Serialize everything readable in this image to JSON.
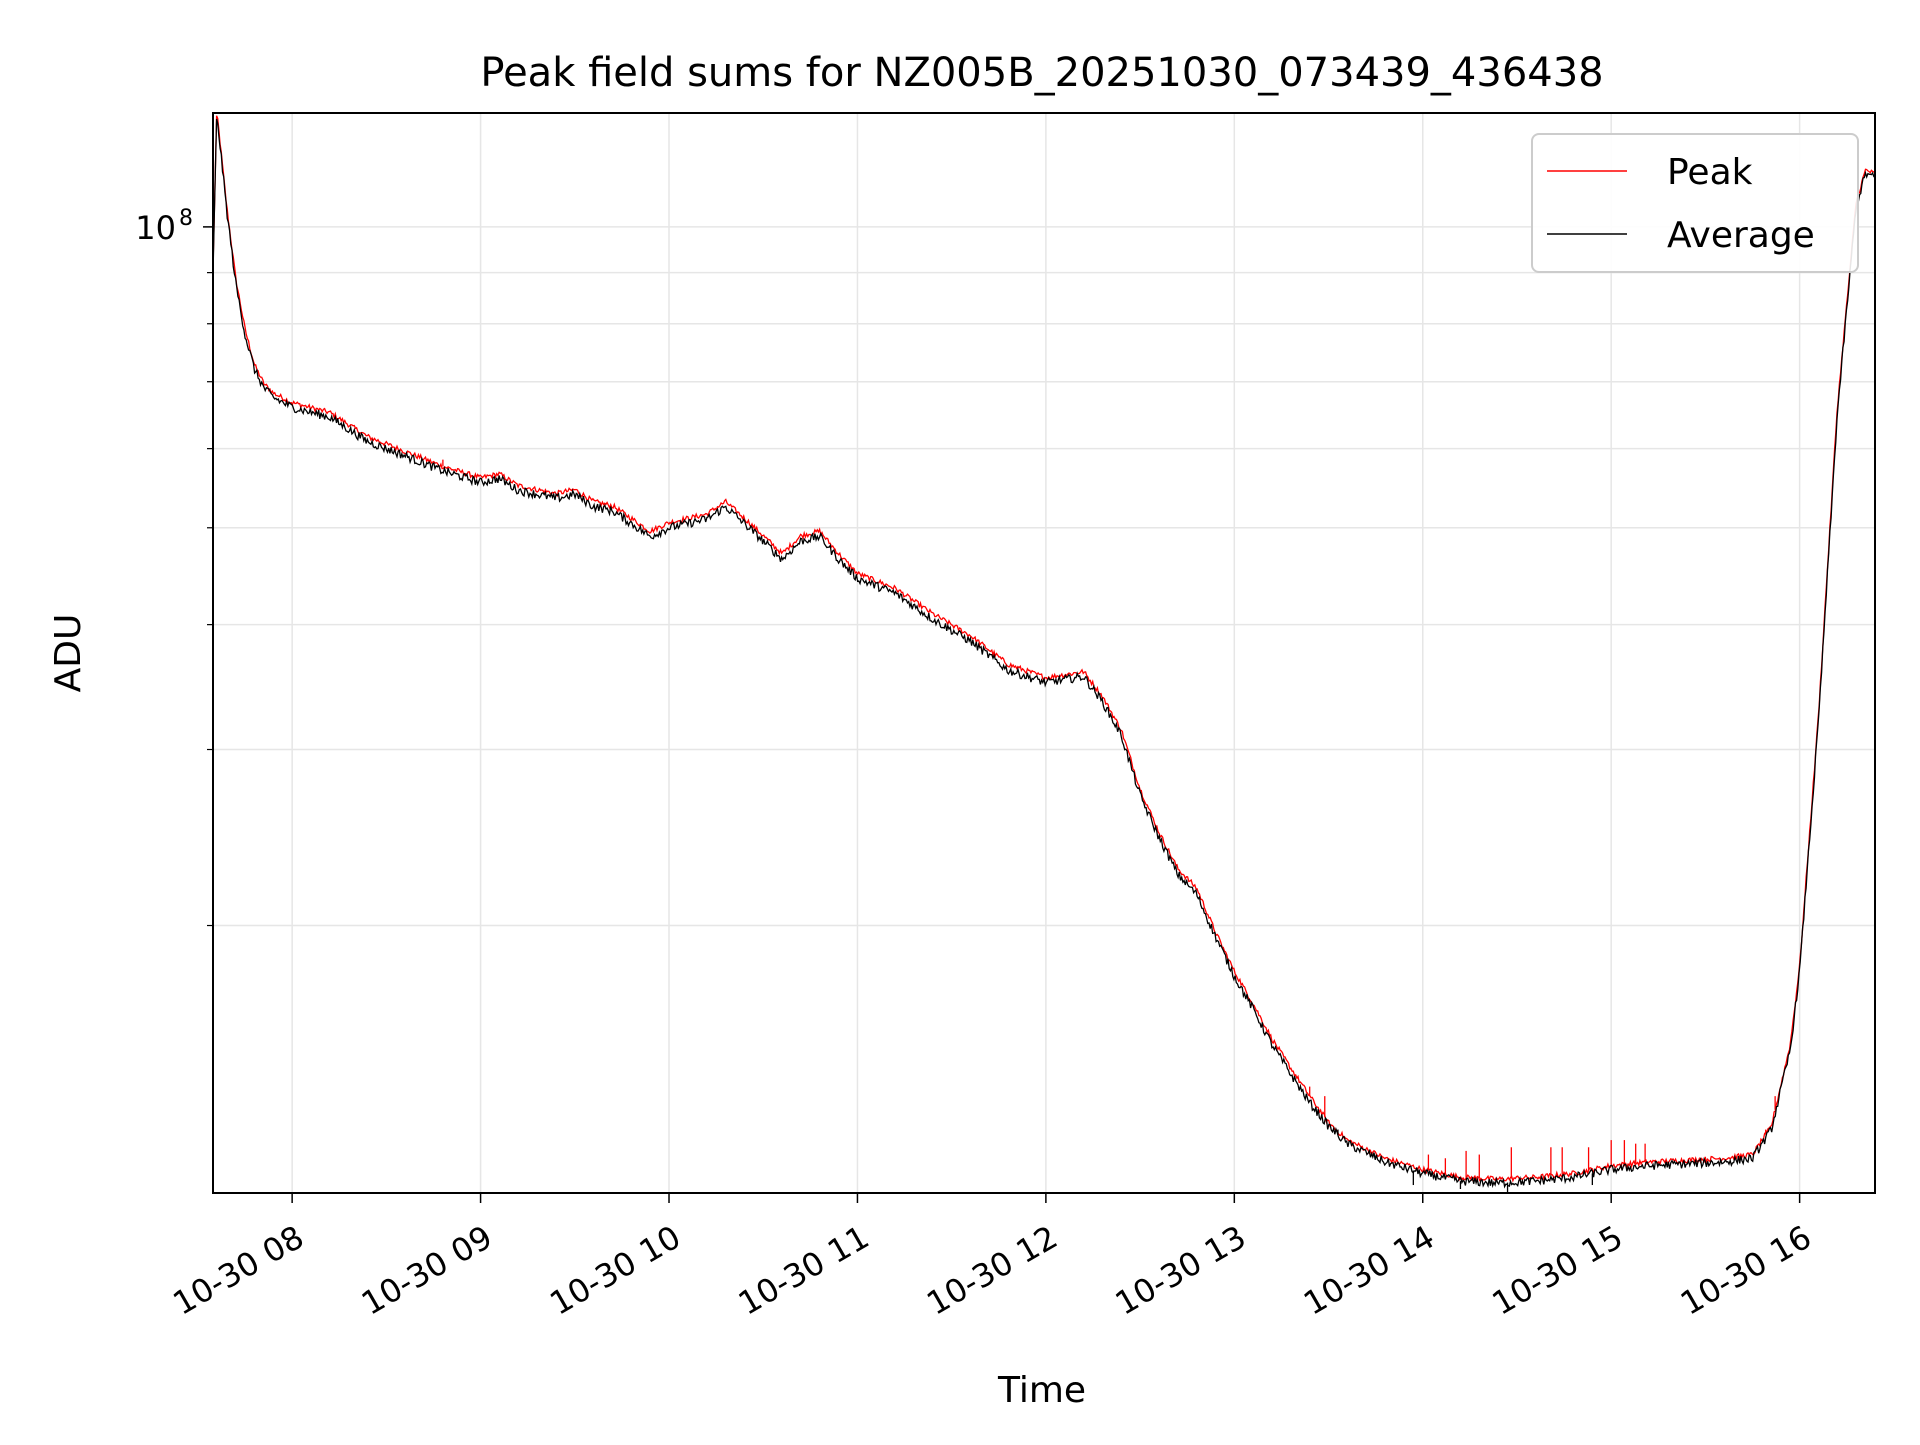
{
  "chart_data": {
    "type": "line",
    "title": "Peak field sums for NZ005B_20251030_073439_436438",
    "xlabel": "Time",
    "ylabel": "ADU",
    "yscale": "log",
    "grid": true,
    "xlim": [
      7.58,
      16.4
    ],
    "ylim": [
      10800000,
      130000000
    ],
    "x_tick_hours": [
      8,
      9,
      10,
      11,
      12,
      13,
      14,
      15,
      16
    ],
    "x_tick_labels": [
      "10-30 08",
      "10-30 09",
      "10-30 10",
      "10-30 11",
      "10-30 12",
      "10-30 13",
      "10-30 14",
      "10-30 15",
      "10-30 16"
    ],
    "y_major_tick": {
      "value": 100000000,
      "base": "10",
      "exponent": "8"
    },
    "y_minor_ticks": [
      20000000,
      30000000,
      40000000,
      50000000,
      60000000,
      70000000,
      80000000,
      90000000
    ],
    "legend": {
      "position": "top-right",
      "entries": [
        "Peak",
        "Average"
      ]
    },
    "series": [
      {
        "name": "Average",
        "color": "#000000",
        "x": [
          7.58,
          7.6,
          7.65,
          7.7,
          7.75,
          7.8,
          7.85,
          7.9,
          8.0,
          8.2,
          8.4,
          8.6,
          8.8,
          9.0,
          9.1,
          9.2,
          9.3,
          9.4,
          9.5,
          9.6,
          9.7,
          9.8,
          9.9,
          10.0,
          10.2,
          10.3,
          10.4,
          10.5,
          10.6,
          10.7,
          10.8,
          10.9,
          11.0,
          11.2,
          11.4,
          11.6,
          11.8,
          12.0,
          12.2,
          12.3,
          12.4,
          12.5,
          12.6,
          12.7,
          12.8,
          12.9,
          13.0,
          13.1,
          13.2,
          13.3,
          13.4,
          13.5,
          13.6,
          13.8,
          14.0,
          14.2,
          14.4,
          14.6,
          14.8,
          15.0,
          15.2,
          15.4,
          15.6,
          15.75,
          15.85,
          15.95,
          16.0,
          16.1,
          16.2,
          16.3,
          16.35,
          16.4
        ],
        "values": [
          90000000,
          130000000,
          105000000,
          88000000,
          78000000,
          72000000,
          69000000,
          67500000,
          66000000,
          64500000,
          61000000,
          59000000,
          57000000,
          55500000,
          56000000,
          54500000,
          54000000,
          53500000,
          54000000,
          52500000,
          52000000,
          50500000,
          49000000,
          50000000,
          51000000,
          52500000,
          50500000,
          48500000,
          46500000,
          48500000,
          49000000,
          46500000,
          44500000,
          43000000,
          40500000,
          38500000,
          36000000,
          35000000,
          35500000,
          33500000,
          31000000,
          27000000,
          24500000,
          22500000,
          21500000,
          19500000,
          17800000,
          16500000,
          15200000,
          14200000,
          13300000,
          12600000,
          12100000,
          11600000,
          11300000,
          11100000,
          11050000,
          11100000,
          11200000,
          11400000,
          11500000,
          11550000,
          11600000,
          11700000,
          12500000,
          15000000,
          18000000,
          32000000,
          65000000,
          105000000,
          113000000,
          112000000
        ]
      },
      {
        "name": "Peak",
        "color": "#ff0000",
        "x": [
          7.58,
          7.6,
          7.65,
          7.7,
          7.75,
          7.8,
          7.85,
          7.9,
          8.0,
          8.2,
          8.4,
          8.6,
          8.8,
          9.0,
          9.1,
          9.2,
          9.3,
          9.4,
          9.5,
          9.6,
          9.7,
          9.8,
          9.9,
          10.0,
          10.2,
          10.3,
          10.4,
          10.5,
          10.6,
          10.7,
          10.8,
          10.9,
          11.0,
          11.2,
          11.4,
          11.6,
          11.8,
          12.0,
          12.2,
          12.3,
          12.4,
          12.5,
          12.6,
          12.7,
          12.8,
          12.9,
          13.0,
          13.1,
          13.2,
          13.3,
          13.4,
          13.5,
          13.6,
          13.8,
          14.0,
          14.2,
          14.4,
          14.6,
          14.8,
          15.0,
          15.2,
          15.4,
          15.6,
          15.75,
          15.85,
          15.95,
          16.0,
          16.1,
          16.2,
          16.3,
          16.35,
          16.4
        ],
        "values": [
          91000000,
          131000000,
          106000000,
          89000000,
          79000000,
          72800000,
          69700000,
          68200000,
          66700000,
          65200000,
          61700000,
          59600000,
          57600000,
          56100000,
          56600000,
          55100000,
          54600000,
          54100000,
          54600000,
          53100000,
          52600000,
          51100000,
          49600000,
          50600000,
          51600000,
          53100000,
          51100000,
          49100000,
          47100000,
          49100000,
          49600000,
          47100000,
          45000000,
          43500000,
          41000000,
          39000000,
          36500000,
          35400000,
          35900000,
          33900000,
          31400000,
          27400000,
          24800000,
          22800000,
          21800000,
          19700000,
          18000000,
          16700000,
          15400000,
          14400000,
          13500000,
          12700000,
          12200000,
          11700000,
          11400000,
          11200000,
          11150000,
          11200000,
          11300000,
          11500000,
          11600000,
          11650000,
          11700000,
          11800000,
          12600000,
          15200000,
          18200000,
          32500000,
          66000000,
          106000000,
          114000000,
          113000000
        ]
      }
    ],
    "spikes": [
      {
        "name": "Peak",
        "x": [
          8.8,
          13.4,
          13.48,
          14.03,
          14.12,
          14.23,
          14.3,
          14.47,
          14.68,
          14.74,
          14.88,
          15.0,
          15.07,
          15.13,
          15.18,
          15.82,
          15.87
        ],
        "values": [
          58500000,
          13800000,
          13500000,
          11800000,
          11700000,
          11900000,
          11800000,
          12000000,
          12000000,
          12000000,
          12000000,
          12200000,
          12200000,
          12100000,
          12100000,
          12500000,
          13500000
        ]
      },
      {
        "name": "Average",
        "x": [
          13.55,
          13.95,
          14.2,
          14.45,
          14.9
        ],
        "values": [
          12500000,
          11000000,
          10900000,
          10800000,
          11000000
        ]
      }
    ]
  }
}
